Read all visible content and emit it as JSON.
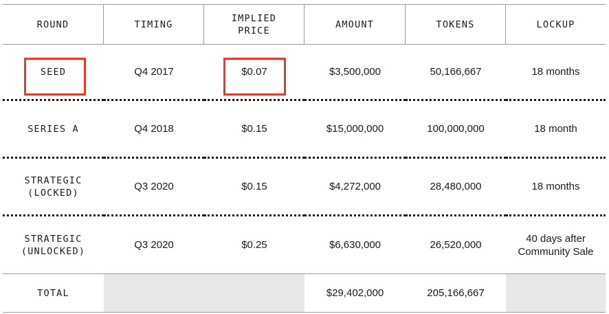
{
  "headers": [
    "ROUND",
    "TIMING",
    "IMPLIED\nPRICE",
    "AMOUNT",
    "TOKENS",
    "LOCKUP"
  ],
  "rows": [
    {
      "round": "SEED",
      "timing": "Q4 2017",
      "price": "$0.07",
      "amount": "$3,500,000",
      "tokens": "50,166,667",
      "lockup": "18 months"
    },
    {
      "round": "SERIES A",
      "timing": "Q4 2018",
      "price": "$0.15",
      "amount": "$15,000,000",
      "tokens": "100,000,000",
      "lockup": "18 month"
    },
    {
      "round": "STRATEGIC\n(LOCKED)",
      "timing": "Q3 2020",
      "price": "$0.15",
      "amount": "$4,272,000",
      "tokens": "28,480,000",
      "lockup": "18 months"
    },
    {
      "round": "STRATEGIC\n(UNLOCKED)",
      "timing": "Q3 2020",
      "price": "$0.25",
      "amount": "$6,630,000",
      "tokens": "26,520,000",
      "lockup": "40 days after\nCommunity Sale"
    }
  ],
  "total": {
    "label": "TOTAL",
    "amount": "$29,402,000",
    "tokens": "205,166,667"
  },
  "colors": {
    "highlight": "#e23b2b",
    "total_fill": "#e8e8ea",
    "rule": "#9a9a9a"
  }
}
